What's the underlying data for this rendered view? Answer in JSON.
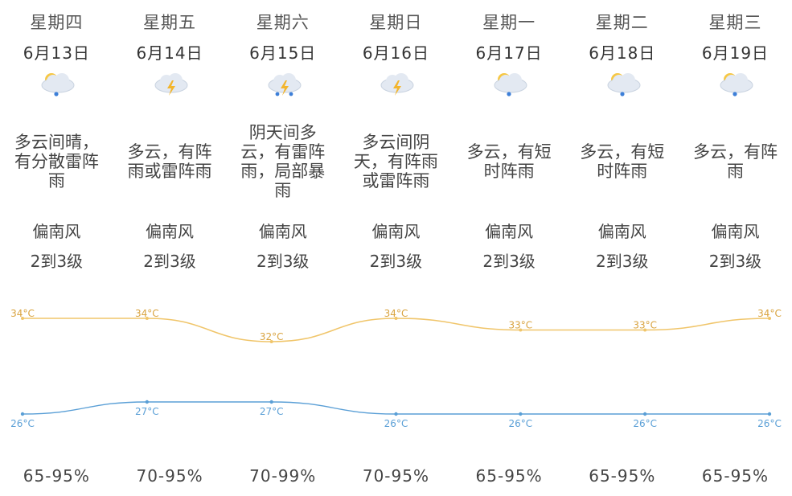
{
  "days": [
    {
      "weekday": "星期四",
      "date": "6月13日",
      "icon": "cloud-rain-icon",
      "desc": "多云间晴，有分散雷阵雨",
      "wind_dir": "偏南风",
      "wind_level": "2到3级",
      "humidity": "65-95%"
    },
    {
      "weekday": "星期五",
      "date": "6月14日",
      "icon": "thunderstorm-icon",
      "desc": "多云，有阵雨或雷阵雨",
      "wind_dir": "偏南风",
      "wind_level": "2到3级",
      "humidity": "70-95%"
    },
    {
      "weekday": "星期六",
      "date": "6月15日",
      "icon": "thunderstorm-rain-icon",
      "desc": "阴天间多云，有雷阵雨，局部暴雨",
      "wind_dir": "偏南风",
      "wind_level": "2到3级",
      "humidity": "70-99%"
    },
    {
      "weekday": "星期日",
      "date": "6月16日",
      "icon": "thunderstorm-icon",
      "desc": "多云间阴天，有阵雨或雷阵雨",
      "wind_dir": "偏南风",
      "wind_level": "2到3级",
      "humidity": "70-95%"
    },
    {
      "weekday": "星期一",
      "date": "6月17日",
      "icon": "cloud-rain-icon",
      "desc": "多云，有短时阵雨",
      "wind_dir": "偏南风",
      "wind_level": "2到3级",
      "humidity": "65-95%"
    },
    {
      "weekday": "星期二",
      "date": "6月18日",
      "icon": "cloud-rain-icon",
      "desc": "多云，有短时阵雨",
      "wind_dir": "偏南风",
      "wind_level": "2到3级",
      "humidity": "65-95%"
    },
    {
      "weekday": "星期三",
      "date": "6月19日",
      "icon": "cloud-rain-icon",
      "desc": "多云，有阵雨",
      "wind_dir": "偏南风",
      "wind_level": "2到3级",
      "humidity": "65-95%"
    }
  ],
  "temperature": {
    "unit": "°C",
    "high": [
      34,
      34,
      32,
      34,
      33,
      33,
      34
    ],
    "low": [
      26,
      27,
      27,
      26,
      26,
      26,
      26
    ],
    "high_color": "#f0c56a",
    "low_color": "#5a9fd6"
  },
  "colors": {
    "cloud": "#e3e9f2",
    "sun": "#f6c744",
    "bolt": "#f3b52c",
    "rain": "#3d7fd8"
  }
}
